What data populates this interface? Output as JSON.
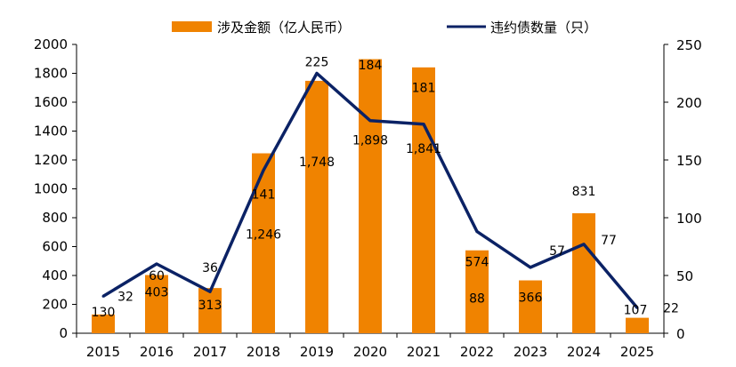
{
  "chart_data": {
    "type": "bar",
    "categories": [
      "2015",
      "2016",
      "2017",
      "2018",
      "2019",
      "2020",
      "2021",
      "2022",
      "2023",
      "2024",
      "2025"
    ],
    "series": [
      {
        "name": "涉及金额（亿人民币）",
        "type": "bar",
        "axis": "left",
        "values": [
          130,
          403,
          313,
          1246,
          1748,
          1898,
          1841,
          574,
          366,
          831,
          107
        ],
        "labels": [
          "130",
          "403",
          "313",
          "1,246",
          "1,748",
          "1,898",
          "1,841",
          "574",
          "366",
          "831",
          "107"
        ],
        "color": "#F08300"
      },
      {
        "name": "违约债数量（只）",
        "type": "line",
        "axis": "right",
        "values": [
          32,
          60,
          36,
          141,
          225,
          184,
          181,
          88,
          57,
          77,
          22
        ],
        "labels": [
          "32",
          "60",
          "36",
          "141",
          "225",
          "184",
          "181",
          "88",
          "57",
          "77",
          "22"
        ],
        "color": "#0B2265"
      }
    ],
    "y_left": {
      "min": 0,
      "max": 2000,
      "ticks": [
        "0",
        "200",
        "400",
        "600",
        "800",
        "1000",
        "1200",
        "1400",
        "1600",
        "1800",
        "2000"
      ]
    },
    "y_right": {
      "min": 0,
      "max": 250,
      "ticks": [
        "0",
        "50",
        "100",
        "150",
        "200",
        "250"
      ]
    },
    "legend_position": "top",
    "grid": false
  }
}
